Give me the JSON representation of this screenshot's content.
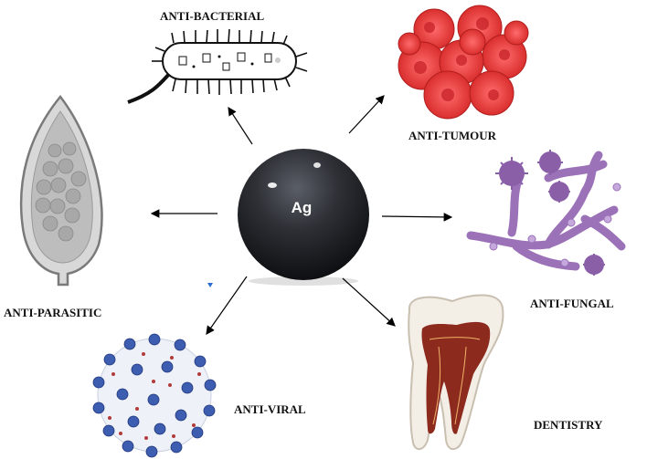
{
  "center": {
    "label": "Ag",
    "color": "#2b2d33"
  },
  "labels": {
    "anti_bacterial": "ANTI-BACTERIAL",
    "anti_tumour": "ANTI-TUMOUR",
    "anti_fungal": "ANTI-FUNGAL",
    "dentistry": "DENTISTRY",
    "anti_viral": "ANTI-VIRAL",
    "anti_parasitic": "ANTI-PARASITIC"
  },
  "icons": {
    "bacterium": "bacterium-icon",
    "tumour": "tumour-cells-icon",
    "fungus": "fungal-hyphae-icon",
    "tooth": "tooth-icon",
    "virus": "virus-icon",
    "parasite": "parasite-egg-icon"
  },
  "colors": {
    "tumour": "#e8383a",
    "fungus": "#9b72b8",
    "virus_spike": "#3c5db0",
    "tooth_pulp": "#8c2a1e",
    "parasite": "#9a9a9a"
  }
}
